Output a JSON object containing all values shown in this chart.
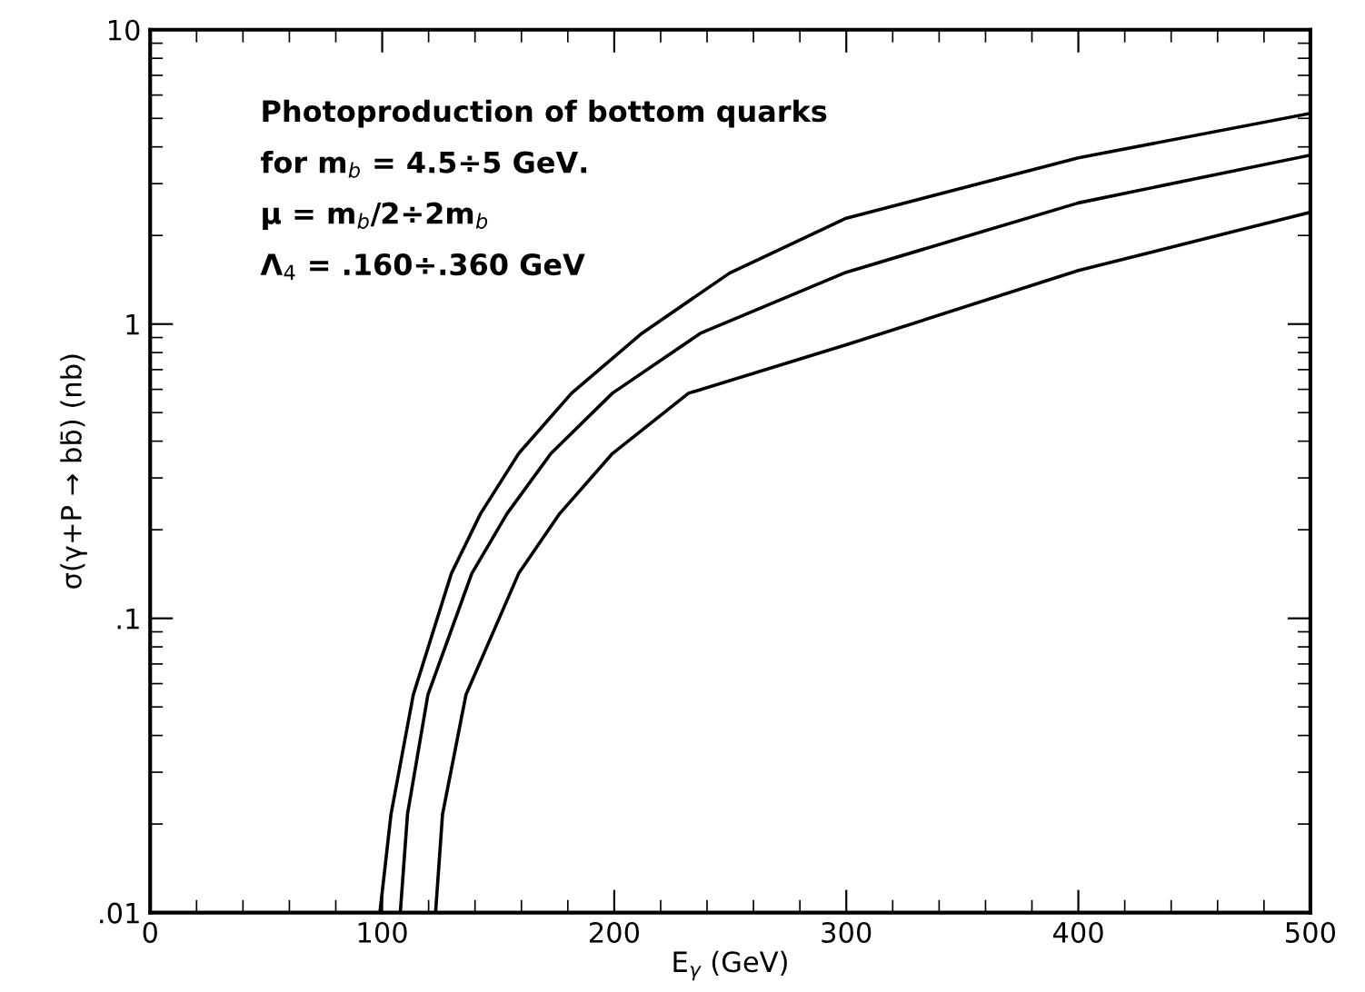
{
  "chart_data": {
    "type": "line",
    "xlabel": "E$_{γ}$ (GeV)",
    "ylabel": "σ(γ+P → bb̄) (nb)",
    "log": "y",
    "grid": false,
    "legend": false,
    "marker": "none",
    "line_style": "solid",
    "xlim": [
      0,
      500
    ],
    "xticks": [
      0,
      100,
      200,
      300,
      400,
      500
    ],
    "ylim": [
      0.01,
      10
    ],
    "yticks": [
      {
        "value": 0.01,
        "label": ".01"
      },
      {
        "value": 0.1,
        "label": ".1"
      },
      {
        "value": 1,
        "label": "1"
      },
      {
        "value": 10,
        "label": "10"
      }
    ],
    "series": [
      {
        "color": "#000000",
        "x": [
          99,
          103.8,
          113.4,
          129.8,
          142.4,
          158.8,
          181.6,
          211.9,
          249.7,
          300,
          400,
          500
        ],
        "values": [
          0.01,
          0.0216,
          0.055,
          0.142,
          0.227,
          0.363,
          0.582,
          0.93,
          1.49,
          2.29,
          3.67,
          5.2
        ]
      },
      {
        "color": "#000000",
        "x": [
          107.8,
          110.9,
          119.7,
          138.6,
          153.8,
          172.7,
          199.2,
          237.1,
          300,
          400,
          500
        ],
        "values": [
          0.01,
          0.0216,
          0.055,
          0.142,
          0.227,
          0.363,
          0.582,
          0.93,
          1.5,
          2.58,
          3.75
        ]
      },
      {
        "color": "#000000",
        "x": [
          123,
          126,
          136.1,
          158.8,
          176.5,
          199.2,
          232,
          300,
          400,
          500
        ],
        "values": [
          0.01,
          0.0216,
          0.055,
          0.142,
          0.227,
          0.363,
          0.582,
          0.85,
          1.52,
          2.4
        ]
      }
    ],
    "annotations": [
      "Photoproduction of bottom quarks",
      "for m$_{b}$ = 4.5÷5 GeV.",
      "μ = m$_{b}$/2÷2m$_{b}$",
      "Λ$_{4}$ = .160÷.360 GeV"
    ]
  }
}
